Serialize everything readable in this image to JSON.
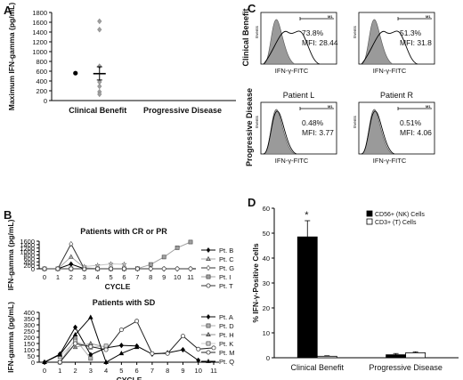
{
  "panel_labels": {
    "a": "A",
    "b": "B",
    "c": "C",
    "d": "D"
  },
  "chart_data": [
    {
      "panel": "A",
      "type": "scatter",
      "ylabel": "Maximum IFN-gamma (pg/mL)",
      "categories": [
        "Clinical Benefit",
        "Progressive Disease"
      ],
      "ylim": [
        0,
        1800
      ],
      "yticks": [
        0,
        200,
        400,
        600,
        800,
        1000,
        1200,
        1400,
        1600,
        1800
      ],
      "points": [
        {
          "group": "Clinical Benefit",
          "side": "left",
          "value": 560,
          "marker": "circle"
        },
        {
          "group": "Clinical Benefit",
          "side": "right",
          "value": 1620,
          "marker": "diamond"
        },
        {
          "group": "Clinical Benefit",
          "side": "right",
          "value": 1450,
          "marker": "diamond"
        },
        {
          "group": "Clinical Benefit",
          "side": "right",
          "value": 700,
          "marker": "diamond"
        },
        {
          "group": "Clinical Benefit",
          "side": "right",
          "value": 380,
          "marker": "diamond"
        },
        {
          "group": "Clinical Benefit",
          "side": "right",
          "value": 290,
          "marker": "diamond"
        },
        {
          "group": "Clinical Benefit",
          "side": "right",
          "value": 180,
          "marker": "diamond"
        },
        {
          "group": "Clinical Benefit",
          "side": "right",
          "value": 130,
          "marker": "diamond"
        }
      ],
      "summary": {
        "group": "Clinical Benefit",
        "mean": 550,
        "error_low": 420,
        "error_high": 690
      }
    },
    {
      "panel": "B-top",
      "type": "line",
      "title": "Patients with CR or PR",
      "xlabel": "CYCLE",
      "ylabel": "IFN-gamma (pg/mL)",
      "x": [
        0,
        1,
        2,
        3,
        4,
        5,
        6,
        7,
        8,
        9,
        10,
        11
      ],
      "ylim": [
        0,
        1600
      ],
      "yticks": [
        0,
        200,
        400,
        600,
        800,
        1000,
        1200,
        1400,
        1600
      ],
      "series": [
        {
          "name": "Pt. B",
          "marker": "diamond",
          "fill": "#000000",
          "line": "#000000",
          "points": [
            [
              0,
              0
            ],
            [
              1,
              0
            ],
            [
              2,
              270
            ],
            [
              3,
              0
            ],
            [
              4,
              0
            ],
            [
              5,
              0
            ],
            [
              6,
              0
            ],
            [
              7,
              0
            ],
            [
              8,
              0
            ],
            [
              9,
              0
            ],
            [
              10,
              0
            ],
            [
              11,
              0
            ]
          ]
        },
        {
          "name": "Pt. C",
          "marker": "triangle",
          "fill": "#b0b0b0",
          "line": "#a8a8a8",
          "points": [
            [
              0,
              0
            ],
            [
              1,
              0
            ],
            [
              2,
              690
            ],
            [
              3,
              60
            ],
            [
              4,
              0
            ]
          ]
        },
        {
          "name": "Pt. G",
          "marker": "diamond",
          "fill": "#ffffff",
          "line": "#333333",
          "points": [
            [
              0,
              0
            ],
            [
              1,
              0
            ],
            [
              2,
              1440
            ],
            [
              3,
              0
            ],
            [
              4,
              0
            ]
          ]
        },
        {
          "name": "Pt. I",
          "marker": "square",
          "fill": "#a0a0a0",
          "line": "#a0a0a0",
          "points": [
            [
              0,
              0
            ],
            [
              1,
              0
            ],
            [
              2,
              0
            ],
            [
              3,
              0
            ],
            [
              4,
              0
            ],
            [
              5,
              0
            ],
            [
              6,
              0
            ],
            [
              7,
              10
            ],
            [
              8,
              250
            ],
            [
              9,
              680
            ],
            [
              10,
              1220
            ],
            [
              11,
              1550
            ]
          ]
        },
        {
          "name": "Pt. T",
          "marker": "circle",
          "fill": "#ffffff",
          "line": "#333333",
          "points": [
            [
              0,
              0
            ],
            [
              1,
              0
            ],
            [
              2,
              0
            ],
            [
              3,
              0
            ],
            [
              4,
              0
            ],
            [
              5,
              0
            ],
            [
              6,
              0
            ],
            [
              7,
              0
            ],
            [
              8,
              0
            ],
            [
              9,
              0
            ],
            [
              10,
              0
            ],
            [
              11,
              0
            ]
          ]
        },
        {
          "name": "",
          "marker": "star",
          "fill": "#c4c4c4",
          "line": "#c4c4c4",
          "points": [
            [
              3,
              130
            ],
            [
              4,
              200
            ],
            [
              5,
              280
            ],
            [
              6,
              260
            ]
          ]
        }
      ]
    },
    {
      "panel": "B-bottom",
      "type": "line",
      "title": "Patients with SD",
      "xlabel": "CYCLE",
      "ylabel": "IFN-gamma (pg/mL)",
      "x": [
        0,
        1,
        2,
        3,
        4,
        5,
        6,
        7,
        8,
        9,
        10,
        11
      ],
      "ylim": [
        0,
        400
      ],
      "yticks": [
        0,
        50,
        100,
        150,
        200,
        250,
        300,
        350,
        400
      ],
      "series": [
        {
          "name": "Pt. A",
          "marker": "diamond",
          "fill": "#000000",
          "line": "#000000",
          "points": [
            [
              0,
              0
            ],
            [
              1,
              65
            ],
            [
              2,
              280
            ],
            [
              3,
              60
            ],
            [
              4,
              115
            ],
            [
              5,
              135
            ],
            [
              6,
              130
            ],
            [
              7,
              65
            ],
            [
              8,
              75
            ],
            [
              9,
              100
            ],
            [
              10,
              15
            ]
          ]
        },
        {
          "name": "Pt. D",
          "marker": "square",
          "fill": "#b0b0b0",
          "line": "#b0b0b0",
          "points": [
            [
              1,
              0
            ],
            [
              2,
              185
            ],
            [
              3,
              30
            ]
          ]
        },
        {
          "name": "Pt. H",
          "marker": "triangle",
          "fill": "#909090",
          "line": "#909090",
          "points": [
            [
              2,
              120
            ],
            [
              3,
              150
            ],
            [
              4,
              120
            ]
          ]
        },
        {
          "name": "Pt. K",
          "marker": "square",
          "fill": "#d0d0d0",
          "line": "#c8c8c8",
          "points": [
            [
              1,
              45
            ],
            [
              2,
              170
            ],
            [
              3,
              120
            ],
            [
              4,
              130
            ]
          ]
        },
        {
          "name": "Pt. M",
          "marker": "circle",
          "fill": "#ffffff",
          "line": "#222222",
          "points": [
            [
              1,
              0
            ],
            [
              2,
              150
            ],
            [
              3,
              125
            ],
            [
              4,
              100
            ],
            [
              5,
              260
            ],
            [
              6,
              330
            ],
            [
              7,
              70
            ],
            [
              8,
              70
            ],
            [
              9,
              210
            ],
            [
              10,
              105
            ],
            [
              11,
              115
            ]
          ]
        },
        {
          "name": "Pt. Q",
          "marker": "triangle",
          "fill": "#000000",
          "line": "#000000",
          "points": [
            [
              0,
              0
            ],
            [
              1,
              60
            ],
            [
              2,
              220
            ],
            [
              3,
              360
            ],
            [
              4,
              0
            ],
            [
              5,
              70
            ],
            [
              6,
              120
            ]
          ]
        }
      ]
    },
    {
      "panel": "C",
      "type": "histogram",
      "xlabel": "IFN-γ-FITC",
      "ylabel": "Events",
      "row_labels": [
        "Clinical Benefit",
        "Progressive Disease"
      ],
      "column_labels": [
        "Patient L",
        "Patient R"
      ],
      "gate_label": "M1",
      "plots": [
        {
          "row": "Clinical Benefit",
          "column": "Patient L",
          "percent": "73.8%",
          "mfi": "MFI: 28.44"
        },
        {
          "row": "Clinical Benefit",
          "column": "Patient R",
          "percent": "51.3%",
          "mfi": "MFI: 31.8"
        },
        {
          "row": "Progressive Disease",
          "column": "Patient L",
          "percent": "0.48%",
          "mfi": "MFI: 3.77"
        },
        {
          "row": "Progressive Disease",
          "column": "Patient R",
          "percent": "0.51%",
          "mfi": "MFI: 4.06"
        }
      ]
    },
    {
      "panel": "D",
      "type": "bar",
      "ylabel": "% IFN-γ-Positive Cells",
      "categories": [
        "Clinical Benefit",
        "Progressive Disease"
      ],
      "ylim": [
        0,
        60
      ],
      "yticks": [
        0,
        10,
        20,
        30,
        40,
        50,
        60
      ],
      "series": [
        {
          "name": "CD56+ (NK) Cells",
          "color": "#000000",
          "values": [
            48.5,
            1.2
          ],
          "errors": [
            6.5,
            0.5
          ]
        },
        {
          "name": "CD3+ (T) Cells",
          "color": "#ffffff",
          "values": [
            0.6,
            2.0
          ],
          "errors": [
            0.2,
            0.4
          ]
        }
      ],
      "annotation": "*"
    }
  ]
}
